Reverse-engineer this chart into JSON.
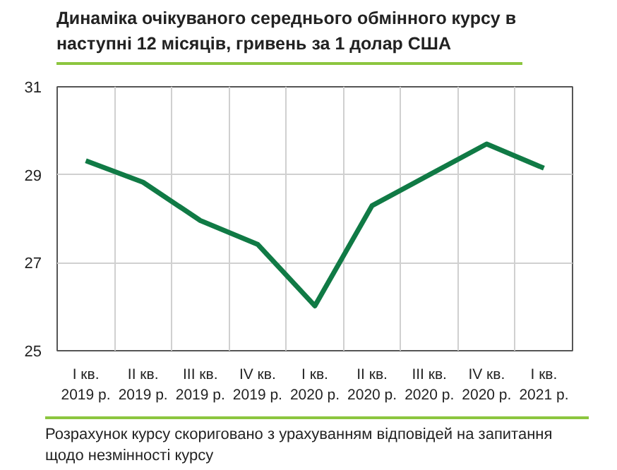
{
  "chart_data": {
    "type": "line",
    "title": "Динаміка очікуваного середнього обмінного курсу в наступні 12 місяців, гривень за 1 долар США",
    "categories": [
      "I кв.\n2019 р.",
      "II кв.\n2019 р.",
      "III кв.\n2019 р.",
      "IV кв.\n2019 р.",
      "I кв.\n2020 р.",
      "II кв.\n2020 р.",
      "III кв.\n2020 р.",
      "IV кв.\n2020 р.",
      "I кв.\n2021 р."
    ],
    "series": [
      {
        "color": "#107a45",
        "values": [
          29.32,
          28.83,
          27.96,
          27.42,
          26.02,
          28.3,
          29.0,
          29.7,
          29.15
        ]
      }
    ],
    "ylim": [
      25,
      31
    ],
    "yticks": [
      25,
      27,
      29,
      31
    ],
    "grid": true,
    "marker": "none",
    "line_style": "solid",
    "annotations": [
      "Розрахунок курсу скориговано з урахуванням відповідей на запитання щодо незмінності курсу"
    ]
  }
}
